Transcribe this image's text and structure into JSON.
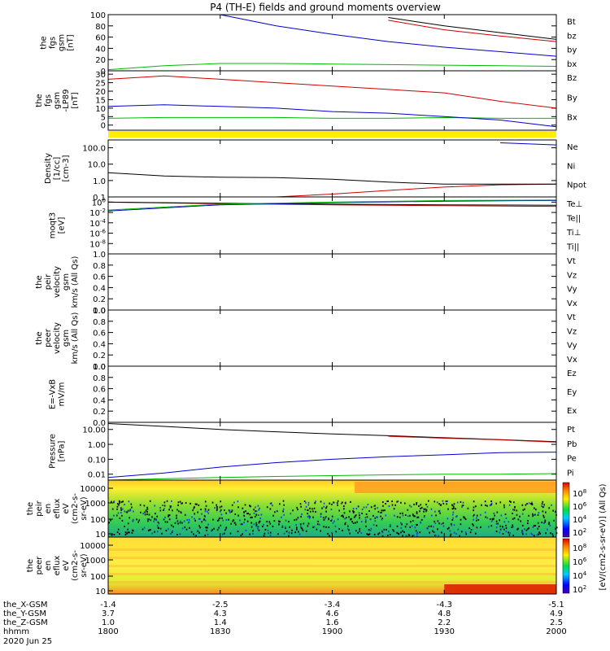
{
  "title": "P4 (TH-E) fields and ground moments overview",
  "time_axis": {
    "rows": [
      {
        "label": "the_X-GSM",
        "values": [
          "-1.4",
          "-2.5",
          "-3.4",
          "-4.3",
          "-5.1"
        ]
      },
      {
        "label": "the_Y-GSM",
        "values": [
          "3.7",
          "4.3",
          "4.6",
          "4.8",
          "4.9"
        ]
      },
      {
        "label": "the_Z-GSM",
        "values": [
          "1.0",
          "1.4",
          "1.6",
          "2.2",
          "2.5"
        ]
      },
      {
        "label": "hhmm",
        "values": [
          "1800",
          "1830",
          "1900",
          "1930",
          "2000"
        ]
      }
    ],
    "date": "2020 Jun 25"
  },
  "colorbar": {
    "label": "[eV/(cm2-s-sr-eV)] (All Qs)",
    "upper_ticks": [
      "10^8",
      "10^6",
      "10^4",
      "10^2"
    ],
    "lower_ticks": [
      "10^8",
      "10^6",
      "10^4",
      "10^2"
    ]
  },
  "chart_data": [
    {
      "type": "line",
      "ylabel": [
        "the",
        "fgs",
        "gsm",
        "[nT]"
      ],
      "ylim": [
        0,
        100
      ],
      "yticks": [
        "100",
        "80",
        "60",
        "40",
        "20",
        "0"
      ],
      "x": [
        1800,
        1815,
        1830,
        1845,
        1900,
        1915,
        1930,
        1945,
        2000
      ],
      "series": [
        {
          "name": "Bt",
          "color": "#000000",
          "values": [
            null,
            null,
            null,
            null,
            null,
            95,
            80,
            68,
            56
          ]
        },
        {
          "name": "bz",
          "color": "#cc0000",
          "values": [
            null,
            null,
            null,
            null,
            null,
            90,
            73,
            62,
            52
          ]
        },
        {
          "name": "by",
          "color": "#00bb00",
          "values": [
            2,
            9,
            13,
            13,
            12,
            11,
            10,
            9,
            8
          ]
        },
        {
          "name": "bx",
          "color": "#0000cc",
          "values": [
            null,
            null,
            100,
            80,
            65,
            52,
            42,
            34,
            26
          ]
        }
      ]
    },
    {
      "type": "line",
      "ylabel": [
        "the",
        "fgs",
        "gsm",
        "-LP89",
        "[nT]"
      ],
      "ylim": [
        -3,
        32
      ],
      "yticks": [
        "30",
        "25",
        "20",
        "15",
        "10",
        "5",
        "0"
      ],
      "x": [
        1800,
        1815,
        1830,
        1845,
        1900,
        1915,
        1930,
        1945,
        2000
      ],
      "series": [
        {
          "name": "Bz",
          "color": "#cc0000",
          "values": [
            27,
            29,
            27,
            25,
            23,
            21,
            19,
            14,
            10
          ]
        },
        {
          "name": "By",
          "color": "#00bb00",
          "values": [
            4,
            4.5,
            4.5,
            4.5,
            4,
            4,
            4.5,
            4,
            4
          ]
        },
        {
          "name": "Bx",
          "color": "#0000cc",
          "values": [
            11,
            12,
            11,
            10,
            8,
            7,
            5,
            3,
            -1
          ]
        }
      ]
    },
    {
      "type": "line",
      "ylabel": [
        "Density",
        "[1/cc]",
        "[cm-3]"
      ],
      "yscale": "log",
      "ylim": [
        0.1,
        300
      ],
      "yticks": [
        "100.0",
        "10.0",
        "1.0",
        "0.1"
      ],
      "x": [
        1800,
        1815,
        1830,
        1845,
        1900,
        1915,
        1930,
        1945,
        2000
      ],
      "series": [
        {
          "name": "Ne",
          "color": "#cc0000",
          "values": [
            0.1,
            0.1,
            0.1,
            0.1,
            0.15,
            0.25,
            0.4,
            0.55,
            0.6
          ]
        },
        {
          "name": "Ni",
          "color": "#000000",
          "values": [
            3,
            1.9,
            1.6,
            1.5,
            1.2,
            0.8,
            0.6,
            0.6,
            0.6
          ]
        },
        {
          "name": "Npot",
          "color": "#0000cc",
          "values": [
            null,
            null,
            null,
            null,
            null,
            null,
            null,
            200,
            150
          ]
        }
      ]
    },
    {
      "type": "line",
      "ylabel": [
        "moqt3",
        "[eV]"
      ],
      "yscale": "log",
      "ylim": [
        1e-10,
        10
      ],
      "yticks": [
        "10^0",
        "10^-2",
        "10^-4",
        "10^-6",
        "10^-8"
      ],
      "x": [
        1800,
        1830,
        1900,
        1930,
        2000
      ],
      "series": [
        {
          "name": "Te⊥",
          "color": "#cc0000",
          "values": [
            1,
            0.5,
            0.3,
            0.2,
            0.15
          ]
        },
        {
          "name": "Te||",
          "color": "#000000",
          "values": [
            1,
            0.6,
            0.4,
            0.3,
            0.25
          ]
        },
        {
          "name": "Ti⊥",
          "color": "#0000cc",
          "values": [
            0.02,
            0.3,
            0.8,
            1.5,
            2
          ]
        },
        {
          "name": "Ti||",
          "color": "#00bb00",
          "values": [
            0.03,
            0.4,
            1,
            2,
            2.5
          ]
        }
      ]
    },
    {
      "type": "line",
      "ylabel": [
        "the",
        "peir",
        "velocity",
        "gsm",
        "km/s (All Qs)"
      ],
      "ylim": [
        0,
        1
      ],
      "yticks": [
        "1.0",
        "0.8",
        "0.6",
        "0.4",
        "0.2",
        "0.0"
      ],
      "series": [
        {
          "name": "Vt",
          "color": "#000000",
          "values": []
        },
        {
          "name": "Vz",
          "color": "#cc0000",
          "values": []
        },
        {
          "name": "Vy",
          "color": "#00bb00",
          "values": []
        },
        {
          "name": "Vx",
          "color": "#0000cc",
          "values": []
        }
      ]
    },
    {
      "type": "line",
      "ylabel": [
        "the",
        "peer",
        "velocity",
        "gsm",
        "km/s (All Qs)"
      ],
      "ylim": [
        0,
        1
      ],
      "yticks": [
        "1.0",
        "0.8",
        "0.6",
        "0.4",
        "0.2",
        "0.0"
      ],
      "series": [
        {
          "name": "Vt",
          "color": "#000000",
          "values": []
        },
        {
          "name": "Vz",
          "color": "#cc0000",
          "values": []
        },
        {
          "name": "Vy",
          "color": "#00bb00",
          "values": []
        },
        {
          "name": "Vx",
          "color": "#0000cc",
          "values": []
        }
      ]
    },
    {
      "type": "line",
      "ylabel": [
        "E=-VxB",
        "mV/m"
      ],
      "ylim": [
        0,
        1
      ],
      "yticks": [
        "1.0",
        "0.8",
        "0.6",
        "0.4",
        "0.2",
        "0.0"
      ],
      "series": [
        {
          "name": "Ez",
          "color": "#cc0000",
          "values": []
        },
        {
          "name": "Ey",
          "color": "#00bb00",
          "values": []
        },
        {
          "name": "Ex",
          "color": "#0000cc",
          "values": []
        }
      ]
    },
    {
      "type": "line",
      "ylabel": [
        "Pressure",
        "[nPa]"
      ],
      "yscale": "log",
      "ylim": [
        0.004,
        30
      ],
      "yticks": [
        "10.00",
        "1.00",
        "0.10",
        "0.01"
      ],
      "x": [
        1800,
        1815,
        1830,
        1845,
        1900,
        1915,
        1930,
        1945,
        2000
      ],
      "series": [
        {
          "name": "Pt",
          "color": "#000000",
          "values": [
            25,
            16,
            10,
            7,
            5,
            3.8,
            2.8,
            2.1,
            1.5
          ]
        },
        {
          "name": "Pb",
          "color": "#cc0000",
          "values": [
            null,
            null,
            null,
            null,
            null,
            3.5,
            2.6,
            2.0,
            1.4
          ]
        },
        {
          "name": "Pe",
          "color": "#00bb00",
          "values": [
            0.004,
            0.005,
            0.006,
            0.007,
            0.008,
            0.009,
            0.01,
            0.01,
            0.011
          ]
        },
        {
          "name": "Pi",
          "color": "#0000cc",
          "values": [
            0.006,
            0.012,
            0.03,
            0.06,
            0.1,
            0.15,
            0.2,
            0.28,
            0.3
          ]
        }
      ]
    },
    {
      "type": "heatmap",
      "ylabel": [
        "the",
        "peir",
        "en",
        "eflux",
        "eV",
        "(cm2-s-",
        "sr-eV)"
      ],
      "yscale": "log",
      "yticks": [
        "10000",
        "1000",
        "100",
        "10"
      ]
    },
    {
      "type": "heatmap",
      "ylabel": [
        "the",
        "peer",
        "en",
        "eflux",
        "eV",
        "(cm2-s-",
        "sr-eV)"
      ],
      "yscale": "log",
      "yticks": [
        "10000",
        "1000",
        "100",
        "10"
      ]
    }
  ]
}
